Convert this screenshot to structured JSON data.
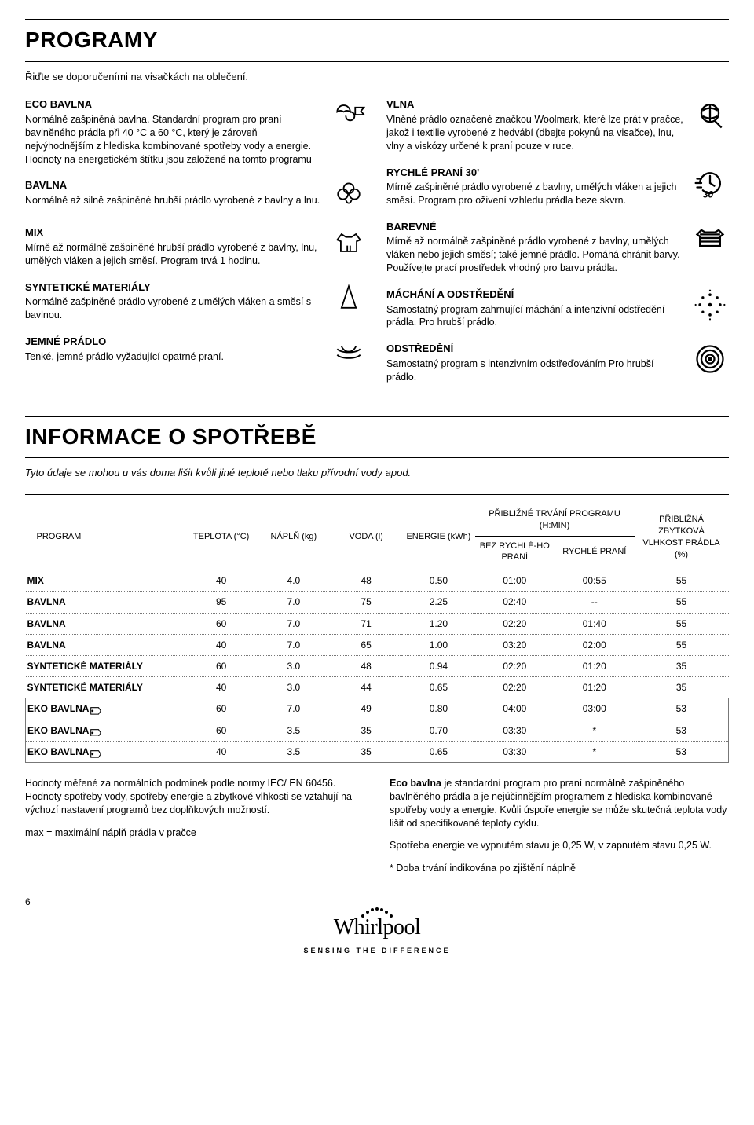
{
  "headings": {
    "programs": "PROGRAMY",
    "consumption": "INFORMACE O SPOTŘEBĚ"
  },
  "intro": {
    "programs": "Řiďte se doporučeními na visačkách na oblečení.",
    "consumption": "Tyto údaje se mohou u vás doma lišit kvůli jiné teplotě nebo tlaku přívodní vody apod."
  },
  "programs_left": [
    {
      "title": "ECO BAVLNA",
      "desc": "Normálně zašpiněná bavlna. Standardní program pro praní bavlněného prádla při 40 °C a 60 °C, který je zároveň nejvýhodnějším z hlediska kombinované spotřeby vody a energie. Hodnoty na energetickém štítku jsou založené na tomto programu",
      "icon": "eco"
    },
    {
      "title": "BAVLNA",
      "desc": "Normálně až silně zašpiněné hrubší prádlo vyrobené z bavlny a lnu.",
      "icon": "cotton"
    },
    {
      "title": "MIX",
      "desc": "Mírně až normálně zašpiněné hrubší prádlo vyrobené z bavlny, lnu, umělých vláken a jejich směsí. Program trvá 1 hodinu.",
      "icon": "mix"
    },
    {
      "title": "SYNTETICKÉ MATERIÁLY",
      "desc": "Normálně zašpiněné prádlo vyrobené z umělých vláken a směsí s bavlnou.",
      "icon": "synth"
    },
    {
      "title": "JEMNÉ PRÁDLO",
      "desc": "Tenké, jemné prádlo vyžadující opatrné praní.",
      "icon": "delicate"
    }
  ],
  "programs_right": [
    {
      "title": "VLNA",
      "desc": "Vlněné prádlo označené značkou Woolmark, které lze prát v pračce, jakož i textilie vyrobené z hedvábí (dbejte pokynů na visačce), lnu, vlny a viskózy určené k praní pouze v ruce.",
      "icon": "wool"
    },
    {
      "title": "RYCHLÉ PRANÍ 30'",
      "desc": "Mírně zašpiněné prádlo vyrobené z bavlny, umělých vláken a jejich směsí. Program pro oživení vzhledu prádla beze skvrn.",
      "icon": "quick30"
    },
    {
      "title": "BAREVNÉ",
      "desc": "Mírně až normálně zašpiněné prádlo vyrobené z bavlny, umělých vláken nebo jejich směsí; také jemné prádlo. Pomáhá chránit barvy. Používejte prací prostředek vhodný pro barvu prádla.",
      "icon": "colors"
    },
    {
      "title": "MÁCHÁNÍ A ODSTŘEDĚNÍ",
      "desc": "Samostatný program zahrnující máchání a intenzivní odstředění prádla. Pro hrubší prádlo.",
      "icon": "rinse"
    },
    {
      "title": "ODSTŘEDĚNÍ",
      "desc": "Samostatný program s intenzivním odstřeďováním Pro hrubší prádlo.",
      "icon": "spin"
    }
  ],
  "table": {
    "headers": {
      "program": "PROGRAM",
      "temp": "TEPLOTA (°C)",
      "load": "NÁPLŇ (kg)",
      "water": "VODA (l)",
      "energy": "ENERGIE (kWh)",
      "duration": "PŘIBLIŽNÉ TRVÁNÍ PROGRAMU (H:MIN)",
      "without_quick": "BEZ RYCHLÉ-HO PRANÍ",
      "quick": "RYCHLÉ PRANÍ",
      "moisture": "PŘIBLIŽNÁ ZBYTKOVÁ VLHKOST PRÁDLA (%)"
    },
    "rows": [
      {
        "name": "MIX",
        "temp": "40",
        "load": "4.0",
        "water": "48",
        "energy": "0.50",
        "dur1": "01:00",
        "dur2": "00:55",
        "moist": "55",
        "eco": false
      },
      {
        "name": "BAVLNA",
        "temp": "95",
        "load": "7.0",
        "water": "75",
        "energy": "2.25",
        "dur1": "02:40",
        "dur2": "--",
        "moist": "55",
        "eco": false
      },
      {
        "name": "BAVLNA",
        "temp": "60",
        "load": "7.0",
        "water": "71",
        "energy": "1.20",
        "dur1": "02:20",
        "dur2": "01:40",
        "moist": "55",
        "eco": false
      },
      {
        "name": "BAVLNA",
        "temp": "40",
        "load": "7.0",
        "water": "65",
        "energy": "1.00",
        "dur1": "03:20",
        "dur2": "02:00",
        "moist": "55",
        "eco": false
      },
      {
        "name": "SYNTETICKÉ MATERIÁLY",
        "temp": "60",
        "load": "3.0",
        "water": "48",
        "energy": "0.94",
        "dur1": "02:20",
        "dur2": "01:20",
        "moist": "35",
        "eco": false
      },
      {
        "name": "SYNTETICKÉ MATERIÁLY",
        "temp": "40",
        "load": "3.0",
        "water": "44",
        "energy": "0.65",
        "dur1": "02:20",
        "dur2": "01:20",
        "moist": "35",
        "eco": false
      },
      {
        "name": "EKO BAVLNA",
        "temp": "60",
        "load": "7.0",
        "water": "49",
        "energy": "0.80",
        "dur1": "04:00",
        "dur2": "03:00",
        "moist": "53",
        "eco": true
      },
      {
        "name": "EKO BAVLNA",
        "temp": "60",
        "load": "3.5",
        "water": "35",
        "energy": "0.70",
        "dur1": "03:30",
        "dur2": "*",
        "moist": "53",
        "eco": true
      },
      {
        "name": "EKO BAVLNA",
        "temp": "40",
        "load": "3.5",
        "water": "35",
        "energy": "0.65",
        "dur1": "03:30",
        "dur2": "*",
        "moist": "53",
        "eco": true
      }
    ]
  },
  "footnotes": {
    "left1": "Hodnoty měřené za normálních podmínek podle normy IEC/ EN 60456. Hodnoty spotřeby vody, spotřeby energie a zbytkové vlhkosti se vztahují na výchozí nastavení programů bez doplňkových možností.",
    "left2": "max = maximální náplň prádla v pračce",
    "right1_bold": "Eco bavlna",
    "right1": " je standardní program pro praní normálně zašpiněného bavlněného prádla a je nejúčinnějším programem z hlediska kombinované spotřeby vody a energie. Kvůli úspoře energie se může skutečná teplota vody lišit od specifikované teploty cyklu.",
    "right2": "Spotřeba energie ve vypnutém stavu je 0,25 W, v zapnutém stavu 0,25 W.",
    "right3": "* Doba trvání indikována po zjištění náplně"
  },
  "footer": {
    "page": "6",
    "brand": "Whirlpool",
    "tagline": "SENSING THE DIFFERENCE"
  },
  "icons_svg": {
    "eco": "<svg viewBox='0 0 48 48' fill='none' stroke='#000' stroke-width='2'><path d='M8 20c0-5 4-9 9-9s9 4 9 9c-3-2-6-2-9 0-3-2-6-2-9 0z'/><path d='M20 26a6 6 0 0 0 12 0 6 6 0 0 0-6-6' stroke-linecap='round'/><path d='M33 14h12l-4 5 4 5H33z' fill='none'/></svg>",
    "cotton": "<svg viewBox='0 0 48 48' fill='none' stroke='#000' stroke-width='2'><circle cx='16' cy='22' r='7'/><circle cx='32' cy='22' r='7'/><circle cx='24' cy='14' r='7'/><path d='M20 30c2 6 6 6 8 0'/></svg>",
    "mix": "<svg viewBox='0 0 48 48' fill='none' stroke='#000' stroke-width='2'><path d='M14 12l-6 8 5 2v14h22V22l5-2-6-8-6 4h-8z'/><path d='M22 36v-8m4 8v-8' /></svg>",
    "synth": "<svg viewBox='0 0 48 48' fill='none' stroke='#000' stroke-width='2'><path d='M24 8l-10 30h20z'/></svg>",
    "delicate": "<svg viewBox='0 0 48 48' fill='none' stroke='#000' stroke-width='2'><path d='M8 20c6 6 26 6 32 0M8 28c6 6 26 6 32 0M14 16c4 10 16 10 20 0'/></svg>",
    "wool": "<svg viewBox='0 0 48 48' fill='none' stroke='#000' stroke-width='2.5'><circle cx='24' cy='22' r='12'/><path d='M14 18c6-4 14-4 20 0M14 26c6 4 14 4 20 0M24 10v24M30 32l10 10'/></svg>",
    "quick30": "<svg viewBox='0 0 48 48' fill='none' stroke='#000' stroke-width='2.5'><path d='M10 24a14 14 0 1 1 4 10' stroke-linecap='round'/><path d='M24 14v10l6 4' stroke-linecap='round'/><path d='M6 18h6M4 24h8M6 30h6' stroke-linecap='round'/><text x='14' y='44' font-size='13' font-weight='900' fill='#000' stroke='none' font-style='italic'>30'</text></svg>",
    "colors": "<svg viewBox='0 0 48 48' fill='none' stroke='#000' stroke-width='2.5'><path d='M12 14l-6 6 4 3v13h28V23l4-3-6-6-5 3H17z'/><path d='M10 20h28M10 25h28M10 30h28'/></svg>",
    "rinse": "<svg viewBox='0 0 48 48' fill='#000'><circle cx='24' cy='24' r='2.5'/><circle cx='24' cy='10' r='2'/><circle cx='24' cy='38' r='2'/><circle cx='10' cy='24' r='2'/><circle cx='38' cy='24' r='2'/><circle cx='14' cy='14' r='1.8'/><circle cx='34' cy='14' r='1.8'/><circle cx='14' cy='34' r='1.8'/><circle cx='34' cy='34' r='1.8'/><circle cx='24' cy='4' r='1.2'/><circle cx='24' cy='44' r='1.2'/><circle cx='4' cy='24' r='1.2'/><circle cx='44' cy='24' r='1.2'/></svg>",
    "spin": "<svg viewBox='0 0 48 48' fill='none' stroke='#000' stroke-width='2.5'><path d='M24 24m-18 0a18 18 0 1 0 36 0 18 18 0 1 0-36 0'/><path d='M24 24m-12 0a12 12 0 1 0 24 0 12 12 0 1 0-24 0'/><path d='M24 24m-6 0a6 6 0 1 0 12 0 6 6 0 1 0-12 0'/><circle cx='24' cy='24' r='2' fill='#000'/></svg>",
    "tag": "<svg viewBox='0 0 20 14' fill='none' stroke='#000' stroke-width='1.5'><path d='M1 1h14l4 6-4 6H1z'/><circle cx='4' cy='7' r='1.2' fill='#000'/></svg>"
  }
}
